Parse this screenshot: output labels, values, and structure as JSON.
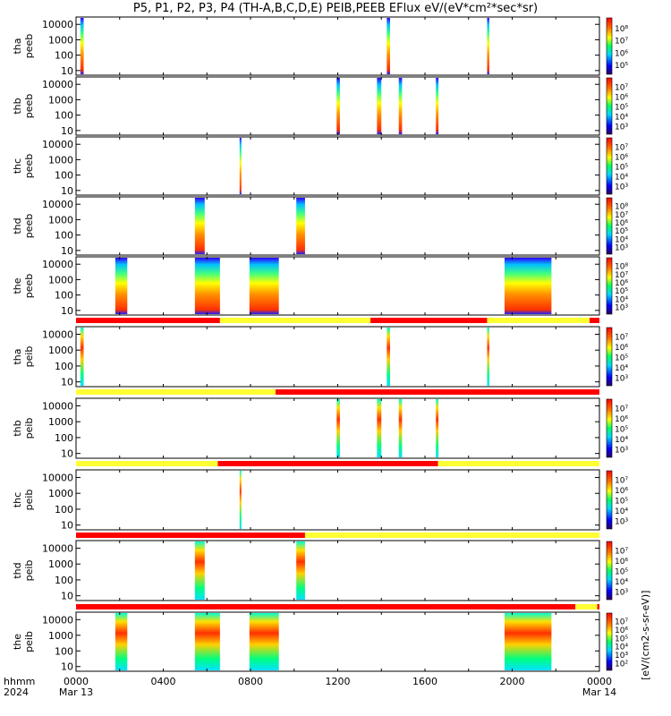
{
  "chart_data": {
    "type": "heatmap",
    "title": "P5, P1, P2, P3, P4 (TH-A,B,C,D,E) PEIB,PEEB EFlux eV/(eV*cm²*sec*sr)",
    "x_axis": {
      "label_rows": [
        "hhmm",
        "2024"
      ],
      "range_hours": [
        0,
        24
      ],
      "ticks": [
        {
          "hour": 0,
          "label": "0000",
          "sub": "Mar 13"
        },
        {
          "hour": 4,
          "label": "0400",
          "sub": ""
        },
        {
          "hour": 8,
          "label": "0800",
          "sub": ""
        },
        {
          "hour": 12,
          "label": "1200",
          "sub": ""
        },
        {
          "hour": 16,
          "label": "1600",
          "sub": ""
        },
        {
          "hour": 20,
          "label": "2000",
          "sub": ""
        },
        {
          "hour": 24,
          "label": "0000",
          "sub": "Mar 14"
        }
      ]
    },
    "y_scale": "log",
    "y_ticks": [
      "10",
      "100",
      "1000",
      "10000"
    ],
    "color_scale_label": "[eV/(cm2-s-sr-eV)]",
    "panels": [
      {
        "probe": "tha",
        "instrument": "peeb",
        "cbar": [
          "10⁵",
          "10⁶",
          "10⁷",
          "10⁸"
        ],
        "bursts": [
          {
            "start": 0.2,
            "end": 0.35
          },
          {
            "start": 14.25,
            "end": 14.4
          },
          {
            "start": 18.85,
            "end": 18.95
          }
        ],
        "mode_bar": []
      },
      {
        "probe": "thb",
        "instrument": "peeb",
        "cbar": [
          "10³",
          "10⁴",
          "10⁵",
          "10⁶",
          "10⁷"
        ],
        "bursts": [
          {
            "start": 11.95,
            "end": 12.1
          },
          {
            "start": 13.8,
            "end": 14.0
          },
          {
            "start": 14.8,
            "end": 14.95
          },
          {
            "start": 16.5,
            "end": 16.62
          }
        ],
        "mode_bar": []
      },
      {
        "probe": "thc",
        "instrument": "peeb",
        "cbar": [
          "10³",
          "10⁴",
          "10⁵",
          "10⁶",
          "10⁷"
        ],
        "bursts": [
          {
            "start": 7.5,
            "end": 7.58
          }
        ],
        "mode_bar": []
      },
      {
        "probe": "thd",
        "instrument": "peeb",
        "cbar": [
          "10³",
          "10⁴",
          "10⁵",
          "10⁶",
          "10⁷",
          "10⁸"
        ],
        "bursts": [
          {
            "start": 5.45,
            "end": 5.9
          },
          {
            "start": 10.1,
            "end": 10.5
          }
        ],
        "mode_bar": []
      },
      {
        "probe": "the",
        "instrument": "peeb",
        "cbar": [
          "10³",
          "10⁴",
          "10⁵",
          "10⁶",
          "10⁷",
          "10⁸"
        ],
        "bursts": [
          {
            "start": 1.8,
            "end": 2.35
          },
          {
            "start": 5.45,
            "end": 6.6
          },
          {
            "start": 7.95,
            "end": 9.3
          },
          {
            "start": 19.65,
            "end": 21.8
          }
        ],
        "mode_bar": [
          {
            "start": 0,
            "end": 6.6,
            "color": "#ff0000"
          },
          {
            "start": 6.6,
            "end": 13.5,
            "color": "#ffff33"
          },
          {
            "start": 13.5,
            "end": 18.85,
            "color": "#ff0000"
          },
          {
            "start": 18.85,
            "end": 23.55,
            "color": "#ffff33"
          },
          {
            "start": 23.55,
            "end": 24,
            "color": "#ff0000"
          }
        ]
      },
      {
        "probe": "tha",
        "instrument": "peib",
        "cbar": [
          "10³",
          "10⁴",
          "10⁵",
          "10⁶",
          "10⁷"
        ],
        "bursts": [
          {
            "start": 0.2,
            "end": 0.35
          },
          {
            "start": 14.25,
            "end": 14.4
          },
          {
            "start": 18.85,
            "end": 18.95
          }
        ],
        "mode_bar": [
          {
            "start": 0,
            "end": 9.15,
            "color": "#ffff33"
          },
          {
            "start": 9.15,
            "end": 24,
            "color": "#ff0000"
          }
        ]
      },
      {
        "probe": "thb",
        "instrument": "peib",
        "cbar": [
          "10³",
          "10⁴",
          "10⁵",
          "10⁶",
          "10⁷"
        ],
        "bursts": [
          {
            "start": 11.95,
            "end": 12.1
          },
          {
            "start": 13.8,
            "end": 14.0
          },
          {
            "start": 14.8,
            "end": 14.95
          },
          {
            "start": 16.5,
            "end": 16.62
          }
        ],
        "mode_bar": [
          {
            "start": 0,
            "end": 6.5,
            "color": "#ffff33"
          },
          {
            "start": 6.5,
            "end": 16.6,
            "color": "#ff0000"
          },
          {
            "start": 16.6,
            "end": 24,
            "color": "#ffff33"
          }
        ]
      },
      {
        "probe": "thc",
        "instrument": "peib",
        "cbar": [
          "10³",
          "10⁴",
          "10⁵",
          "10⁶",
          "10⁷"
        ],
        "bursts": [
          {
            "start": 7.5,
            "end": 7.58
          }
        ],
        "mode_bar": [
          {
            "start": 0,
            "end": 10.5,
            "color": "#ff0000"
          },
          {
            "start": 10.5,
            "end": 24,
            "color": "#ffff33"
          }
        ]
      },
      {
        "probe": "thd",
        "instrument": "peib",
        "cbar": [
          "10³",
          "10⁴",
          "10⁵",
          "10⁶",
          "10⁷"
        ],
        "bursts": [
          {
            "start": 5.45,
            "end": 5.9
          },
          {
            "start": 10.1,
            "end": 10.5
          }
        ],
        "mode_bar": [
          {
            "start": 0,
            "end": 22.9,
            "color": "#ff0000"
          },
          {
            "start": 22.9,
            "end": 23.9,
            "color": "#ffff33"
          },
          {
            "start": 23.9,
            "end": 24,
            "color": "#ff0000"
          }
        ]
      },
      {
        "probe": "the",
        "instrument": "peib",
        "cbar": [
          "10²",
          "10³",
          "10⁴",
          "10⁵",
          "10⁶",
          "10⁷"
        ],
        "bursts": [
          {
            "start": 1.8,
            "end": 2.35
          },
          {
            "start": 5.45,
            "end": 6.6
          },
          {
            "start": 7.95,
            "end": 9.3
          },
          {
            "start": 19.65,
            "end": 21.8
          }
        ],
        "mode_bar": []
      }
    ]
  }
}
